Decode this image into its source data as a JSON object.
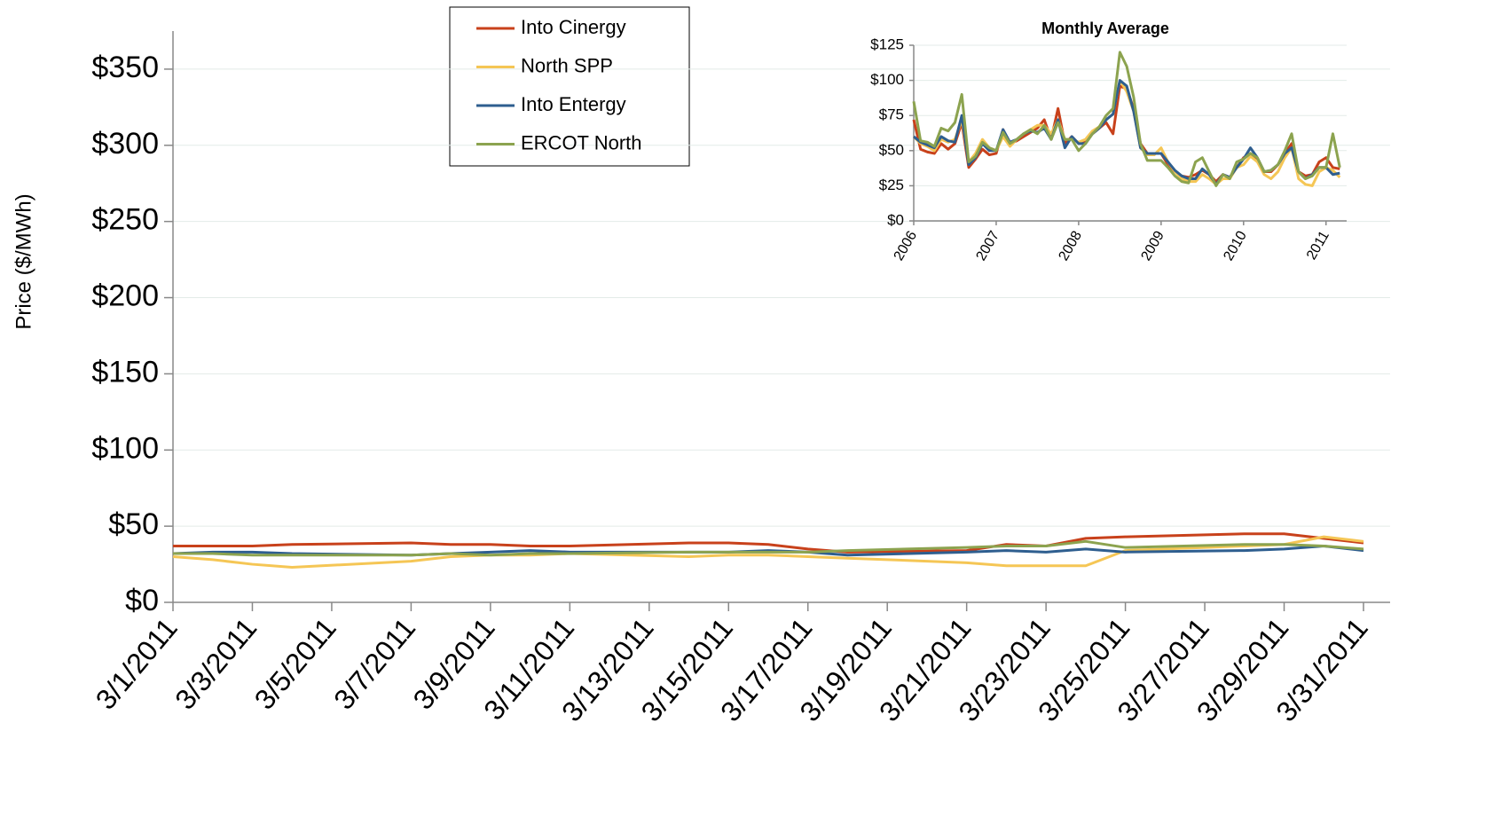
{
  "chart_data": [
    {
      "type": "line",
      "y_label": "Price ($/MWh)",
      "x": [
        "3/1/2011",
        "3/2/2011",
        "3/3/2011",
        "3/4/2011",
        "3/7/2011",
        "3/8/2011",
        "3/9/2011",
        "3/10/2011",
        "3/11/2011",
        "3/14/2011",
        "3/15/2011",
        "3/16/2011",
        "3/17/2011",
        "3/18/2011",
        "3/21/2011",
        "3/22/2011",
        "3/23/2011",
        "3/24/2011",
        "3/25/2011",
        "3/28/2011",
        "3/29/2011",
        "3/30/2011",
        "3/31/2011"
      ],
      "xlim": [
        "3/1/2011",
        "3/31/2011"
      ],
      "xticks": [
        "3/1/2011",
        "3/3/2011",
        "3/5/2011",
        "3/7/2011",
        "3/9/2011",
        "3/11/2011",
        "3/13/2011",
        "3/15/2011",
        "3/17/2011",
        "3/19/2011",
        "3/21/2011",
        "3/23/2011",
        "3/25/2011",
        "3/27/2011",
        "3/29/2011",
        "3/31/2011"
      ],
      "ylim": [
        0,
        375
      ],
      "yticks": [
        {
          "value": 0,
          "label": "$0"
        },
        {
          "value": 50,
          "label": "$50"
        },
        {
          "value": 100,
          "label": "$100"
        },
        {
          "value": 150,
          "label": "$150"
        },
        {
          "value": 200,
          "label": "$200"
        },
        {
          "value": 250,
          "label": "$250"
        },
        {
          "value": 300,
          "label": "$300"
        },
        {
          "value": 350,
          "label": "$350"
        }
      ],
      "grid": true,
      "legend": "top",
      "series": [
        {
          "name": "Into Cinergy",
          "color": "#c8411b",
          "values": [
            37,
            37,
            37,
            38,
            39,
            38,
            38,
            37,
            37,
            39,
            39,
            38,
            35,
            33,
            34,
            38,
            37,
            42,
            43,
            45,
            45,
            42,
            39
          ]
        },
        {
          "name": "North SPP",
          "color": "#f5c655",
          "values": [
            30,
            28,
            25,
            23,
            27,
            30,
            31,
            31,
            32,
            30,
            31,
            31,
            30,
            29,
            26,
            24,
            24,
            24,
            34,
            37,
            38,
            43,
            40
          ]
        },
        {
          "name": "Into Entergy",
          "color": "#2e5e8f",
          "values": [
            32,
            33,
            33,
            32,
            31,
            32,
            33,
            34,
            33,
            33,
            33,
            34,
            33,
            31,
            33,
            34,
            33,
            35,
            33,
            34,
            35,
            37,
            34
          ]
        },
        {
          "name": "ERCOT North",
          "color": "#8ca34f",
          "values": [
            32,
            32,
            31,
            31,
            31,
            32,
            31,
            32,
            32,
            33,
            33,
            33,
            33,
            34,
            36,
            37,
            37,
            40,
            36,
            38,
            38,
            37,
            35
          ]
        }
      ]
    },
    {
      "type": "line",
      "title": "Monthly Average",
      "x": [
        2006.0,
        2006.083,
        2006.167,
        2006.25,
        2006.333,
        2006.417,
        2006.5,
        2006.583,
        2006.667,
        2006.75,
        2006.833,
        2006.917,
        2007.0,
        2007.083,
        2007.167,
        2007.25,
        2007.333,
        2007.417,
        2007.5,
        2007.583,
        2007.667,
        2007.75,
        2007.833,
        2007.917,
        2008.0,
        2008.083,
        2008.167,
        2008.25,
        2008.333,
        2008.417,
        2008.5,
        2008.583,
        2008.667,
        2008.75,
        2008.833,
        2008.917,
        2009.0,
        2009.083,
        2009.167,
        2009.25,
        2009.333,
        2009.417,
        2009.5,
        2009.583,
        2009.667,
        2009.75,
        2009.833,
        2009.917,
        2010.0,
        2010.083,
        2010.167,
        2010.25,
        2010.333,
        2010.417,
        2010.5,
        2010.583,
        2010.667,
        2010.75,
        2010.833,
        2010.917,
        2011.0,
        2011.083,
        2011.167
      ],
      "xlim": [
        2006,
        2011.25
      ],
      "xticks": [
        2006,
        2007,
        2008,
        2009,
        2010,
        2011
      ],
      "ylim": [
        0,
        125
      ],
      "yticks": [
        {
          "value": 0,
          "label": "$0"
        },
        {
          "value": 25,
          "label": "$25"
        },
        {
          "value": 50,
          "label": "$50"
        },
        {
          "value": 75,
          "label": "$75"
        },
        {
          "value": 100,
          "label": "$100"
        },
        {
          "value": 125,
          "label": "$125"
        }
      ],
      "grid": true,
      "series": [
        {
          "color": "#c8411b",
          "values": [
            72,
            51,
            49,
            48,
            55,
            51,
            55,
            70,
            38,
            44,
            51,
            47,
            48,
            65,
            55,
            57,
            60,
            63,
            66,
            72,
            58,
            80,
            55,
            60,
            55,
            56,
            62,
            66,
            70,
            62,
            96,
            94,
            80,
            55,
            48,
            48,
            48,
            40,
            35,
            32,
            31,
            33,
            36,
            33,
            28,
            33,
            31,
            38,
            45,
            48,
            43,
            35,
            35,
            40,
            48,
            55,
            35,
            32,
            33,
            42,
            45,
            38,
            37
          ]
        },
        {
          "color": "#f5c655",
          "values": [
            60,
            55,
            53,
            50,
            58,
            56,
            58,
            72,
            42,
            48,
            58,
            52,
            50,
            60,
            53,
            58,
            62,
            65,
            68,
            68,
            62,
            72,
            58,
            58,
            56,
            58,
            64,
            67,
            72,
            76,
            100,
            92,
            78,
            52,
            47,
            47,
            52,
            42,
            35,
            30,
            28,
            28,
            33,
            30,
            26,
            30,
            30,
            38,
            40,
            46,
            42,
            33,
            30,
            35,
            45,
            52,
            30,
            26,
            25,
            35,
            38,
            36,
            31
          ]
        },
        {
          "color": "#2e5e8f",
          "values": [
            60,
            56,
            54,
            52,
            60,
            57,
            56,
            75,
            40,
            45,
            55,
            50,
            50,
            65,
            56,
            58,
            62,
            64,
            63,
            66,
            58,
            72,
            52,
            60,
            55,
            55,
            62,
            66,
            72,
            76,
            100,
            96,
            78,
            52,
            48,
            48,
            48,
            42,
            36,
            32,
            30,
            30,
            37,
            33,
            26,
            33,
            31,
            38,
            44,
            52,
            45,
            35,
            36,
            40,
            48,
            52,
            35,
            30,
            33,
            38,
            38,
            33,
            34
          ]
        },
        {
          "color": "#8ca34f",
          "values": [
            85,
            57,
            56,
            53,
            66,
            64,
            70,
            90,
            42,
            46,
            56,
            52,
            50,
            63,
            55,
            58,
            62,
            65,
            62,
            68,
            58,
            70,
            58,
            58,
            50,
            55,
            62,
            67,
            75,
            80,
            120,
            110,
            88,
            55,
            43,
            43,
            43,
            38,
            32,
            28,
            27,
            42,
            45,
            35,
            25,
            33,
            30,
            42,
            44,
            48,
            45,
            35,
            36,
            40,
            50,
            62,
            35,
            30,
            32,
            38,
            38,
            62,
            38
          ]
        }
      ]
    }
  ]
}
